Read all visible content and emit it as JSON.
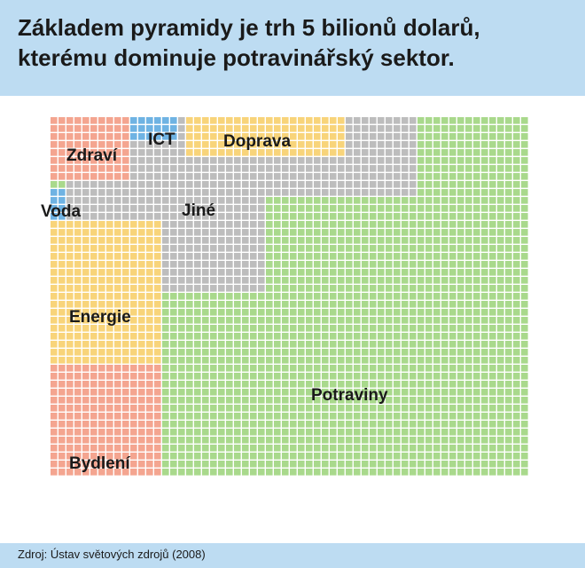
{
  "title_line1": "Základem pyramidy je trh 5 bilionů dolarů,",
  "title_line2": "kterému dominuje potravinářský sektor.",
  "source": "Zdroj: Ústav světových zdrojů (2008)",
  "colors": {
    "header_bg": "#bddcf2",
    "Potraviny": "#a9d98c",
    "Jiné": "#bdbdbd",
    "Energie": "#f8d47a",
    "Doprava": "#f8d47a",
    "Bydlení": "#f4a590",
    "Zdraví": "#f4a590",
    "ICT": "#6fb3e3",
    "Voda": "#6fb3e3"
  },
  "chart_data": {
    "type": "waffle",
    "grid": {
      "columns": 60,
      "rows": 45
    },
    "categories": [
      {
        "name": "Potraviny",
        "cells": 1730
      },
      {
        "name": "Jiné",
        "cells": 241
      },
      {
        "name": "Energie",
        "cells": 253
      },
      {
        "name": "Bydlení",
        "cells": 132
      },
      {
        "name": "Doprava",
        "cells": 90
      },
      {
        "name": "Zdraví",
        "cells": 80
      },
      {
        "name": "ICT",
        "cells": 16
      },
      {
        "name": "Voda",
        "cells": 8
      }
    ]
  }
}
